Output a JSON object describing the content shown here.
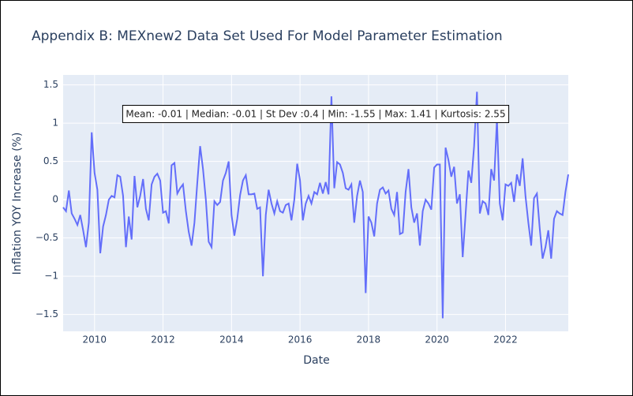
{
  "chart_data": {
    "type": "line",
    "title": "Appendix B: MEXnew2 Data Set Used For Model Parameter Estimation",
    "x_label": "Date",
    "y_label": "Inflation YOY Increase (%)",
    "annotation": "Mean: -0.01 | Median: -0.01 | St Dev :0.4 | Min: -1.55 | Max: 1.41 | Kurtosis: 2.55",
    "color": "#636efa",
    "grid": true,
    "xlim": [
      2009.083,
      2023.833
    ],
    "xticks": [
      2010,
      2012,
      2014,
      2016,
      2018,
      2020,
      2022
    ],
    "ylim": [
      -1.72,
      1.63
    ],
    "yticks": [
      {
        "value": -1.5,
        "label": "−1.5"
      },
      {
        "value": -1,
        "label": "−1"
      },
      {
        "value": -0.5,
        "label": "−0.5"
      },
      0,
      0.5,
      1,
      1.5
    ],
    "x": [
      2009.083,
      2009.167,
      2009.25,
      2009.333,
      2009.417,
      2009.5,
      2009.583,
      2009.667,
      2009.75,
      2009.833,
      2009.917,
      2010.0,
      2010.083,
      2010.167,
      2010.25,
      2010.333,
      2010.417,
      2010.5,
      2010.583,
      2010.667,
      2010.75,
      2010.833,
      2010.917,
      2011.0,
      2011.083,
      2011.167,
      2011.25,
      2011.333,
      2011.417,
      2011.5,
      2011.583,
      2011.667,
      2011.75,
      2011.833,
      2011.917,
      2012.0,
      2012.083,
      2012.167,
      2012.25,
      2012.333,
      2012.417,
      2012.5,
      2012.583,
      2012.667,
      2012.75,
      2012.833,
      2012.917,
      2013.0,
      2013.083,
      2013.167,
      2013.25,
      2013.333,
      2013.417,
      2013.5,
      2013.583,
      2013.667,
      2013.75,
      2013.833,
      2013.917,
      2014.0,
      2014.083,
      2014.167,
      2014.25,
      2014.333,
      2014.417,
      2014.5,
      2014.583,
      2014.667,
      2014.75,
      2014.833,
      2014.917,
      2015.0,
      2015.083,
      2015.167,
      2015.25,
      2015.333,
      2015.417,
      2015.5,
      2015.583,
      2015.667,
      2015.75,
      2015.833,
      2015.917,
      2016.0,
      2016.083,
      2016.167,
      2016.25,
      2016.333,
      2016.417,
      2016.5,
      2016.583,
      2016.667,
      2016.75,
      2016.833,
      2016.917,
      2017.0,
      2017.083,
      2017.167,
      2017.25,
      2017.333,
      2017.417,
      2017.5,
      2017.583,
      2017.667,
      2017.75,
      2017.833,
      2017.917,
      2018.0,
      2018.083,
      2018.167,
      2018.25,
      2018.333,
      2018.417,
      2018.5,
      2018.583,
      2018.667,
      2018.75,
      2018.833,
      2018.917,
      2019.0,
      2019.083,
      2019.167,
      2019.25,
      2019.333,
      2019.417,
      2019.5,
      2019.583,
      2019.667,
      2019.75,
      2019.833,
      2019.917,
      2020.0,
      2020.083,
      2020.167,
      2020.25,
      2020.333,
      2020.417,
      2020.5,
      2020.583,
      2020.667,
      2020.75,
      2020.833,
      2020.917,
      2021.0,
      2021.083,
      2021.167,
      2021.25,
      2021.333,
      2021.417,
      2021.5,
      2021.583,
      2021.667,
      2021.75,
      2021.833,
      2021.917,
      2022.0,
      2022.083,
      2022.167,
      2022.25,
      2022.333,
      2022.417,
      2022.5,
      2022.583,
      2022.667,
      2022.75,
      2022.833,
      2022.917,
      2023.0,
      2023.083,
      2023.167,
      2023.25,
      2023.333,
      2023.417,
      2023.5,
      2023.583,
      2023.667,
      2023.75,
      2023.833
    ],
    "values": [
      -0.1,
      -0.15,
      0.12,
      -0.18,
      -0.25,
      -0.33,
      -0.2,
      -0.4,
      -0.62,
      -0.3,
      0.88,
      0.35,
      0.13,
      -0.7,
      -0.35,
      -0.2,
      0.0,
      0.05,
      0.03,
      0.32,
      0.3,
      0.05,
      -0.62,
      -0.22,
      -0.52,
      0.31,
      -0.1,
      0.05,
      0.27,
      -0.12,
      -0.27,
      0.2,
      0.3,
      0.34,
      0.25,
      -0.17,
      -0.15,
      -0.31,
      0.45,
      0.48,
      0.08,
      0.15,
      0.2,
      -0.15,
      -0.42,
      -0.6,
      -0.3,
      0.22,
      0.7,
      0.4,
      0.0,
      -0.55,
      -0.62,
      -0.02,
      -0.07,
      -0.03,
      0.25,
      0.35,
      0.5,
      -0.2,
      -0.47,
      -0.25,
      0.06,
      0.25,
      0.32,
      0.07,
      0.07,
      0.08,
      -0.12,
      -0.1,
      -1.0,
      -0.2,
      0.13,
      -0.05,
      -0.18,
      -0.02,
      -0.15,
      -0.17,
      -0.07,
      -0.05,
      -0.27,
      0.0,
      0.47,
      0.25,
      -0.27,
      -0.05,
      0.05,
      -0.05,
      0.1,
      0.07,
      0.22,
      0.08,
      0.23,
      0.07,
      1.35,
      0.15,
      0.49,
      0.46,
      0.35,
      0.15,
      0.13,
      0.2,
      -0.3,
      0.05,
      0.25,
      0.1,
      -1.22,
      -0.22,
      -0.3,
      -0.48,
      -0.05,
      0.13,
      0.16,
      0.08,
      0.12,
      -0.12,
      -0.2,
      0.1,
      -0.45,
      -0.43,
      0.1,
      0.4,
      -0.1,
      -0.3,
      -0.18,
      -0.6,
      -0.15,
      0.0,
      -0.05,
      -0.13,
      0.42,
      0.46,
      0.46,
      -1.55,
      0.68,
      0.52,
      0.3,
      0.43,
      -0.05,
      0.07,
      -0.75,
      -0.2,
      0.38,
      0.22,
      0.7,
      1.41,
      -0.18,
      -0.02,
      -0.05,
      -0.2,
      0.4,
      0.25,
      1.05,
      -0.05,
      -0.27,
      0.2,
      0.18,
      0.22,
      -0.03,
      0.33,
      0.18,
      0.54,
      0.05,
      -0.3,
      -0.6,
      0.02,
      0.08,
      -0.38,
      -0.77,
      -0.62,
      -0.4,
      -0.77,
      -0.25,
      -0.15,
      -0.18,
      -0.2,
      0.1,
      0.33
    ]
  }
}
